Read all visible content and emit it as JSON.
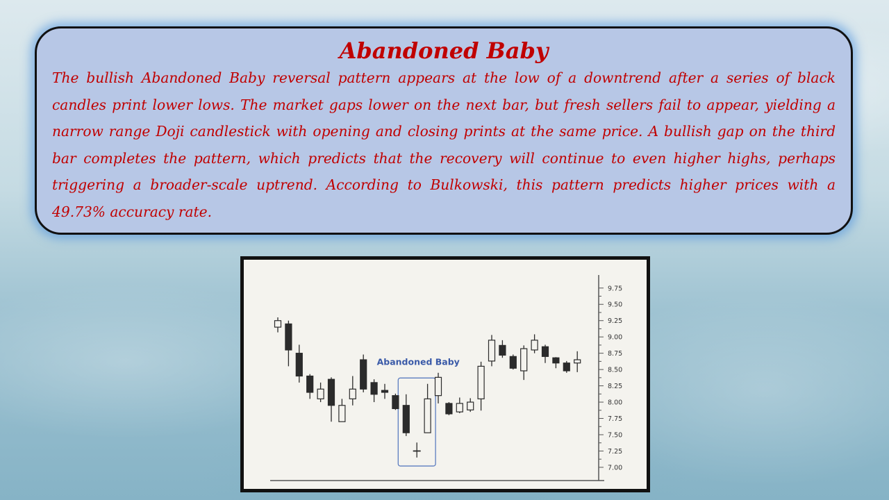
{
  "callout": {
    "title": "Abandoned Baby",
    "body": "The bullish Abandoned Baby reversal pattern appears at the low of a downtrend after a series of black candles print lower lows. The market gaps lower on the next bar, but fresh sellers fail to appear, yielding a narrow range Doji candlestick with opening and closing prints at the same price. A bullish gap on the third bar completes the pattern, which predicts that the recovery will continue to even higher highs, perhaps triggering a broader-scale uptrend. According to Bulkowski, this pattern predicts higher prices with a 49.73% accuracy rate."
  },
  "chart_data": {
    "type": "candlestick",
    "annotation": "Abandoned Baby",
    "ylim": [
      6.85,
      9.95
    ],
    "y_ticks": [
      "9.75",
      "9.50",
      "9.25",
      "9.00",
      "8.75",
      "8.50",
      "8.25",
      "8.00",
      "7.75",
      "7.50",
      "7.25",
      "7.00"
    ],
    "colors": {
      "candle": "#2b2b2b",
      "hollow_fill": "#f4f3ee",
      "annotation_box": "#5b7cc0",
      "annotation_text": "#3a5aa8"
    },
    "candles": [
      {
        "open": 9.15,
        "close": 9.25,
        "high": 9.3,
        "low": 9.07
      },
      {
        "open": 9.2,
        "close": 8.8,
        "high": 9.25,
        "low": 8.55
      },
      {
        "open": 8.75,
        "close": 8.4,
        "high": 8.88,
        "low": 8.3
      },
      {
        "open": 8.4,
        "close": 8.15,
        "high": 8.43,
        "low": 8.05
      },
      {
        "open": 8.05,
        "close": 8.2,
        "high": 8.3,
        "low": 8.0
      },
      {
        "open": 8.35,
        "close": 7.95,
        "high": 8.38,
        "low": 7.7
      },
      {
        "open": 7.7,
        "close": 7.95,
        "high": 8.05,
        "low": 7.7
      },
      {
        "open": 8.05,
        "close": 8.2,
        "high": 8.4,
        "low": 7.95
      },
      {
        "open": 8.65,
        "close": 8.2,
        "high": 8.73,
        "low": 8.15
      },
      {
        "open": 8.3,
        "close": 8.12,
        "high": 8.35,
        "low": 8.0
      },
      {
        "open": 8.18,
        "close": 8.15,
        "high": 8.28,
        "low": 8.05
      },
      {
        "open": 8.1,
        "close": 7.9,
        "high": 8.13,
        "low": 7.88
      },
      {
        "open": 7.95,
        "close": 7.53,
        "high": 8.12,
        "low": 7.48
      },
      {
        "open": 7.25,
        "close": 7.25,
        "high": 7.38,
        "low": 7.15
      },
      {
        "open": 7.53,
        "close": 8.05,
        "high": 8.28,
        "low": 7.53
      },
      {
        "open": 8.1,
        "close": 8.38,
        "high": 8.45,
        "low": 7.98
      },
      {
        "open": 7.98,
        "close": 7.82,
        "high": 8.0,
        "low": 7.8
      },
      {
        "open": 7.85,
        "close": 7.98,
        "high": 8.07,
        "low": 7.83
      },
      {
        "open": 7.88,
        "close": 8.0,
        "high": 8.06,
        "low": 7.85
      },
      {
        "open": 8.05,
        "close": 8.55,
        "high": 8.62,
        "low": 7.87
      },
      {
        "open": 8.63,
        "close": 8.95,
        "high": 9.03,
        "low": 8.55
      },
      {
        "open": 8.87,
        "close": 8.72,
        "high": 8.95,
        "low": 8.68
      },
      {
        "open": 8.7,
        "close": 8.52,
        "high": 8.73,
        "low": 8.5
      },
      {
        "open": 8.48,
        "close": 8.82,
        "high": 8.87,
        "low": 8.34
      },
      {
        "open": 8.8,
        "close": 8.95,
        "high": 9.04,
        "low": 8.75
      },
      {
        "open": 8.85,
        "close": 8.7,
        "high": 8.88,
        "low": 8.6
      },
      {
        "open": 8.68,
        "close": 8.6,
        "high": 8.69,
        "low": 8.52
      },
      {
        "open": 8.6,
        "close": 8.48,
        "high": 8.63,
        "low": 8.45
      },
      {
        "open": 8.6,
        "close": 8.65,
        "high": 8.78,
        "low": 8.46
      }
    ],
    "highlight_range": [
      12,
      14
    ]
  }
}
